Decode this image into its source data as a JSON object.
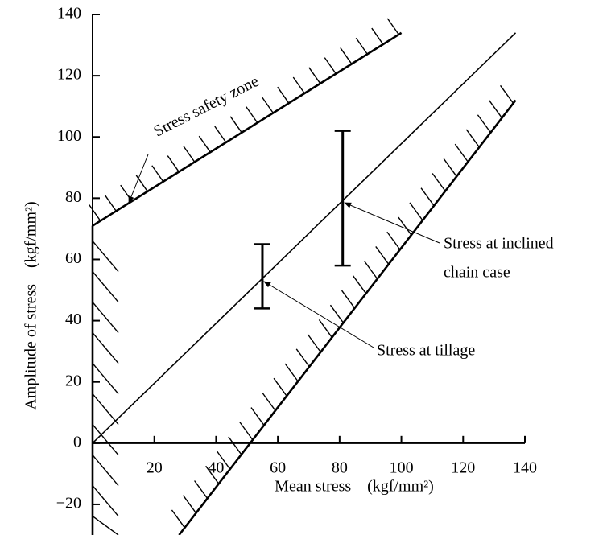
{
  "chart_data": {
    "type": "line",
    "xlabel": "Mean stress　(kgf/mm²)",
    "ylabel": "Amplitude of stress　(kgf/mm²)",
    "xlim": [
      0,
      140
    ],
    "ylim": [
      -30,
      140
    ],
    "xticks": [
      20,
      40,
      60,
      80,
      100,
      120,
      140
    ],
    "yticks": [
      {
        "value": -20,
        "label": "−20"
      },
      0,
      20,
      40,
      60,
      80,
      100,
      120,
      140
    ],
    "series": [
      {
        "x": [
          0,
          100
        ],
        "values": [
          71,
          134
        ],
        "color": "#000000",
        "hatch": "above"
      },
      {
        "x": [
          0,
          0
        ],
        "values": [
          71,
          -30
        ],
        "color": "#000000",
        "hatch": "right"
      },
      {
        "x": [
          28,
          137
        ],
        "values": [
          -30,
          112
        ],
        "color": "#000000",
        "hatch": "left"
      },
      {
        "x": [
          0,
          137
        ],
        "values": [
          0,
          134
        ],
        "color": "#000000"
      }
    ],
    "errorbars": [
      {
        "x": 55,
        "low": 44,
        "high": 65
      },
      {
        "x": 81,
        "low": 58,
        "high": 102
      }
    ],
    "annotations": [
      {
        "text": "Stress safety zone"
      },
      {
        "lines": [
          "Stress at inclined",
          "chain case"
        ]
      },
      {
        "text": "Stress at tillage"
      }
    ]
  }
}
